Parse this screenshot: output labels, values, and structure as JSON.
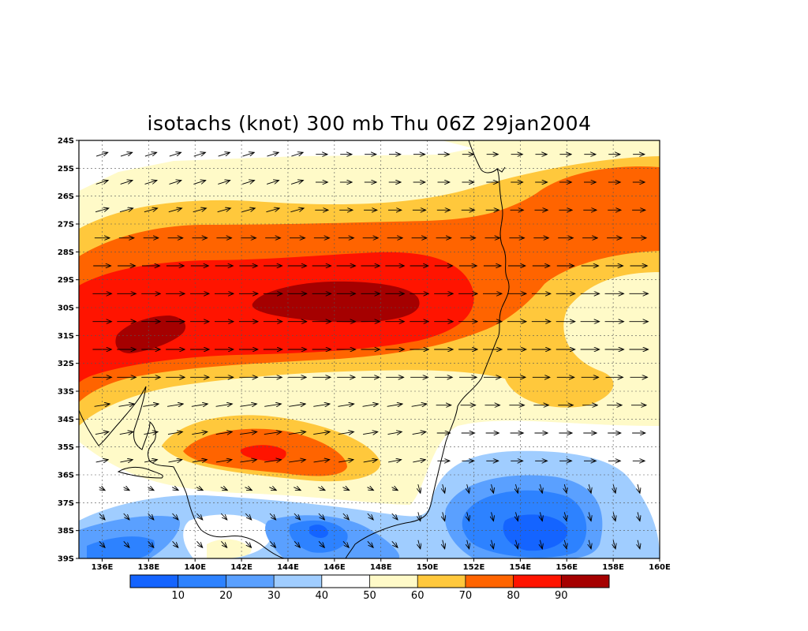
{
  "title": "isotachs (knot) 300 mb Thu 06Z 29jan2004",
  "chart_data": {
    "type": "heatmap",
    "variable": "isotachs (knot)",
    "level": "300 mb",
    "valid_time": "Thu 06Z 29jan2004",
    "lon_range": [
      135,
      160
    ],
    "lat_range": [
      -39,
      -24
    ],
    "lat_ticks": [
      "24S",
      "25S",
      "26S",
      "27S",
      "28S",
      "29S",
      "30S",
      "31S",
      "32S",
      "33S",
      "34S",
      "35S",
      "36S",
      "37S",
      "38S",
      "39S"
    ],
    "lon_ticks": [
      "136E",
      "138E",
      "140E",
      "142E",
      "144E",
      "146E",
      "148E",
      "150E",
      "152E",
      "154E",
      "156E",
      "158E",
      "160E"
    ],
    "grid": true,
    "colorbar": {
      "levels": [
        "10",
        "20",
        "30",
        "40",
        "50",
        "60",
        "70",
        "80",
        "90"
      ],
      "colors": [
        "#1464ff",
        "#2d82ff",
        "#5aa0ff",
        "#a0cdff",
        "#ffffff",
        "#fffac8",
        "#ffc83c",
        "#ff6400",
        "#ff1400",
        "#a50000"
      ]
    },
    "jet_maxima": [
      {
        "lon": 146.5,
        "lat": -30.0,
        "speed_class": ">90"
      },
      {
        "lon": 137.5,
        "lat": -31.0,
        "speed_class": ">90"
      },
      {
        "lon": 143.5,
        "lat": -35.2,
        "speed_class": "80-90"
      }
    ],
    "wind_minimum": {
      "lon": 145.5,
      "lat": -38.0,
      "speed_class": "<10"
    }
  }
}
